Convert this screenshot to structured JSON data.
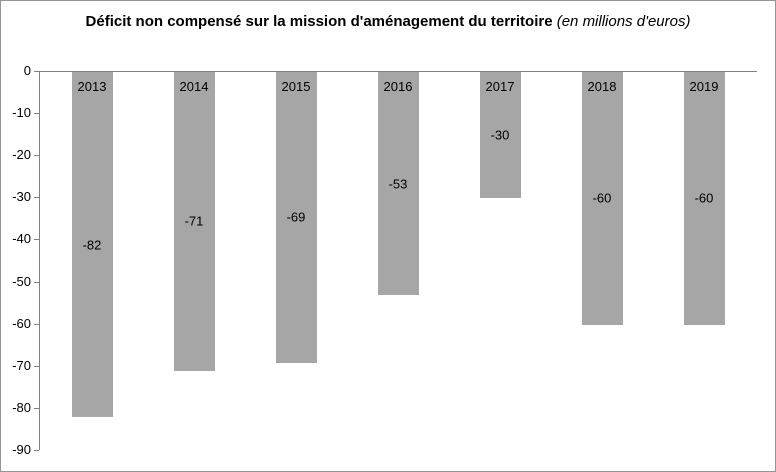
{
  "title": {
    "bold": "Déficit non compensé sur la mission d'aménagement du territoire",
    "italic": "(en millions d'euros)"
  },
  "chart_data": {
    "type": "bar",
    "title": "Déficit non compensé sur la mission d'aménagement du territoire",
    "subtitle": "(en millions d'euros)",
    "categories": [
      "2013",
      "2014",
      "2015",
      "2016",
      "2017",
      "2018",
      "2019"
    ],
    "values": [
      -82,
      -71,
      -69,
      -53,
      -30,
      -60,
      -60
    ],
    "value_labels": [
      "-82",
      "-71",
      "-69",
      "-53",
      "-30",
      "-60",
      "-60"
    ],
    "ylim": [
      -90,
      0
    ],
    "yticks": [
      0,
      -10,
      -20,
      -30,
      -40,
      -50,
      -60,
      -70,
      -80,
      -90
    ],
    "xlabel": "",
    "ylabel": "",
    "legend": "none",
    "grid": "none",
    "bar_color": "#a6a6a6",
    "axis_color": "#808080",
    "text_color": "#000000",
    "year_label_position": "inside-top",
    "value_label_position": "inside-center"
  }
}
